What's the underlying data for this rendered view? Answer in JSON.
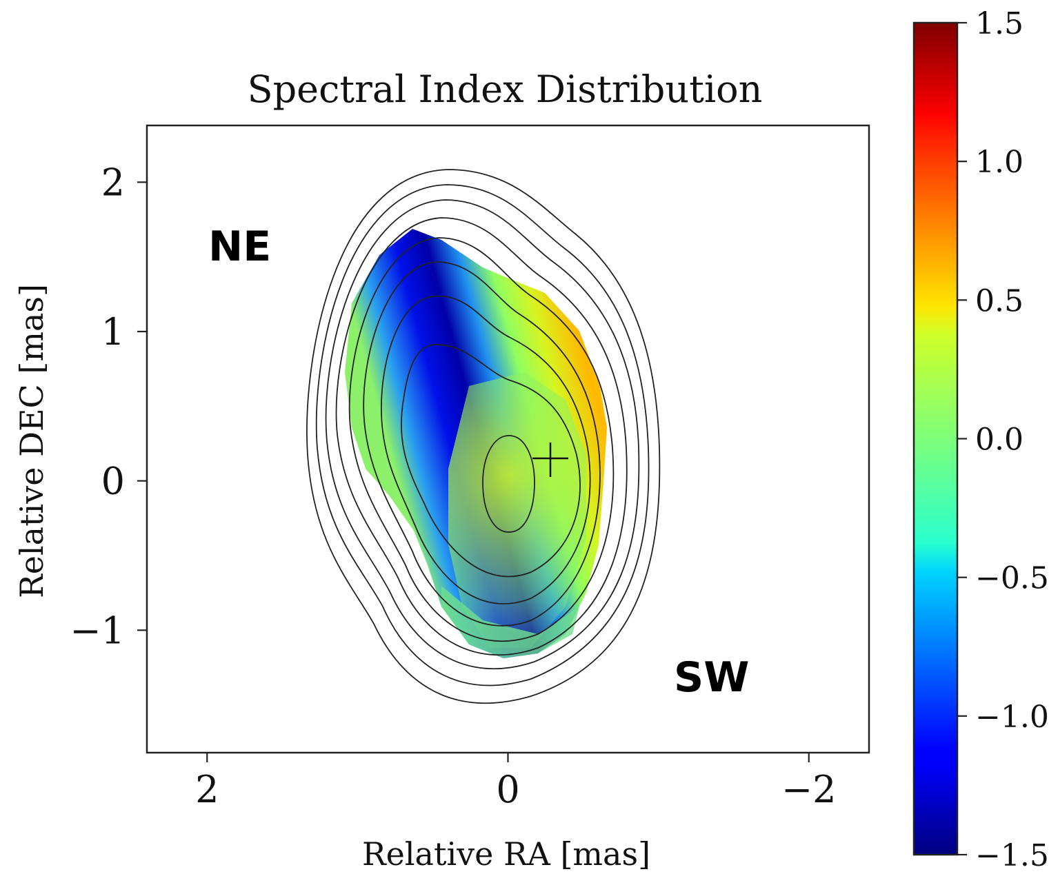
{
  "chart_data": {
    "type": "heatmap",
    "title": "Spectral Index Distribution",
    "xlabel": "Relative RA [mas]",
    "ylabel": "Relative DEC [mas]",
    "xlim": [
      2.4,
      -2.4
    ],
    "ylim": [
      -1.82,
      2.38
    ],
    "xticks": [
      2,
      0,
      -2
    ],
    "xtick_labels": [
      "2",
      "0",
      "−2"
    ],
    "yticks": [
      2,
      1,
      0,
      -1
    ],
    "ytick_labels": [
      "2",
      "1",
      "0",
      "−1"
    ],
    "annotations": [
      {
        "text": "NE",
        "x": 1.95,
        "y": 1.55
      },
      {
        "text": "SW",
        "x": -1.4,
        "y": -1.33
      }
    ],
    "core_marker": {
      "symbol": "+",
      "x": -0.25,
      "y": 0.13
    },
    "colorbar": {
      "colormap": "jet",
      "vmin": -1.5,
      "vmax": 1.5,
      "ticks": [
        1.5,
        1.0,
        0.5,
        0.0,
        -0.5,
        -1.0,
        -1.5
      ],
      "tick_labels": [
        "1.5",
        "1.0",
        "0.5",
        "0.0",
        "−0.5",
        "−1.0",
        "−1.5"
      ]
    },
    "spectral_index": {
      "range": [
        -1.5,
        0.8
      ],
      "steep_ridge": {
        "description": "steep-spectrum band along NE side",
        "value": -1.4
      },
      "flat_region": {
        "description": "flat/inverted region near core and W edge",
        "value": 0.6
      },
      "core_value": 0.15
    },
    "contours": {
      "count": 9,
      "center": {
        "x": 0.0,
        "y": 0.0
      },
      "levels": [
        {
          "level": 1,
          "semi_major_mas": 0.33
        },
        {
          "level": 2,
          "semi_major_mas": 0.7
        },
        {
          "level": 3,
          "semi_major_mas": 0.95
        },
        {
          "level": 4,
          "semi_major_mas": 1.1
        },
        {
          "level": 5,
          "semi_major_mas": 1.22
        },
        {
          "level": 6,
          "semi_major_mas": 1.35
        },
        {
          "level": 7,
          "semi_major_mas": 1.47
        },
        {
          "level": 8,
          "semi_major_mas": 1.6
        },
        {
          "level": 9,
          "semi_major_mas": 1.76
        }
      ]
    }
  }
}
